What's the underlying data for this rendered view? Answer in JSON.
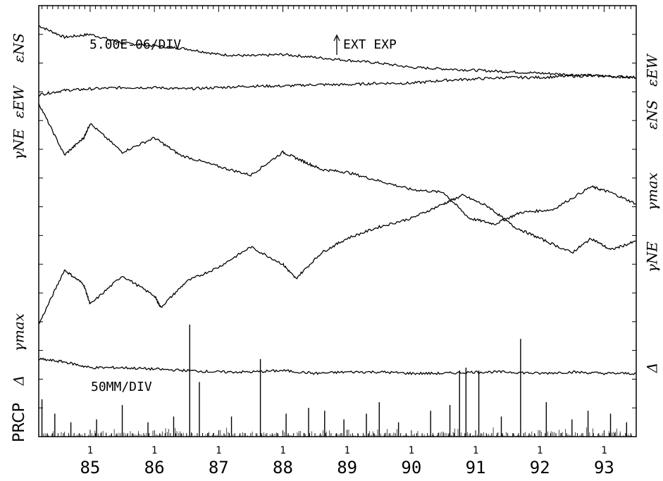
{
  "chart_data": {
    "type": "line",
    "annotations": {
      "strain_scale": "5.00E-06/DIV",
      "event": "EXT EXP",
      "precip_scale": "50MM/DIV"
    },
    "left_labels": [
      "εNS",
      "εEW",
      "γNE",
      "γmax",
      "Δ",
      "PRCP"
    ],
    "right_labels": [
      "εEW",
      "εNS",
      "γmax",
      "γNE",
      "Δ"
    ],
    "x_ticks": [
      {
        "top": "1",
        "bottom": "85",
        "year": 85.0
      },
      {
        "top": "1",
        "bottom": "86",
        "year": 86.0
      },
      {
        "top": "1",
        "bottom": "87",
        "year": 87.0
      },
      {
        "top": "1",
        "bottom": "88",
        "year": 88.0
      },
      {
        "top": "1",
        "bottom": "89",
        "year": 89.0
      },
      {
        "top": "1",
        "bottom": "90",
        "year": 90.0
      },
      {
        "top": "1",
        "bottom": "91",
        "year": 91.0
      },
      {
        "top": "1",
        "bottom": "92",
        "year": 92.0
      },
      {
        "top": "1",
        "bottom": "93",
        "year": 93.0
      }
    ],
    "xlim": [
      84.2,
      93.5
    ],
    "y_unit_note": "strain in 5.00E-06 divisions; precipitation in 50 mm divisions",
    "ylim": [
      0,
      15
    ],
    "series": [
      {
        "name": "εNS",
        "x": [
          84.2,
          84.6,
          85.0,
          85.5,
          86.0,
          86.5,
          87.0,
          87.5,
          88.0,
          88.5,
          89.0,
          89.5,
          90.0,
          90.5,
          91.0,
          91.5,
          92.0,
          92.5,
          93.0,
          93.5
        ],
        "y": [
          14.3,
          13.9,
          14.0,
          13.7,
          13.6,
          13.5,
          13.3,
          13.25,
          13.3,
          13.2,
          13.1,
          13.0,
          12.85,
          12.8,
          12.75,
          12.7,
          12.65,
          12.6,
          12.55,
          12.5
        ]
      },
      {
        "name": "εEW",
        "x": [
          84.2,
          84.6,
          85.0,
          85.5,
          86.0,
          86.5,
          87.0,
          87.5,
          88.0,
          88.5,
          89.0,
          89.5,
          90.0,
          90.5,
          91.0,
          91.5,
          92.0,
          92.5,
          93.0,
          93.5
        ],
        "y": [
          11.9,
          12.05,
          12.1,
          12.15,
          12.15,
          12.1,
          12.15,
          12.2,
          12.2,
          12.25,
          12.25,
          12.3,
          12.3,
          12.4,
          12.45,
          12.5,
          12.5,
          12.55,
          12.55,
          12.5
        ]
      },
      {
        "name": "γmax",
        "x": [
          84.2,
          84.6,
          84.9,
          85.0,
          85.5,
          86.0,
          86.4,
          87.0,
          87.5,
          88.0,
          88.3,
          88.6,
          89.0,
          89.5,
          90.0,
          90.5,
          90.9,
          91.3,
          91.7,
          92.2,
          92.8,
          93.1,
          93.5
        ],
        "y": [
          11.6,
          9.8,
          10.4,
          10.9,
          9.9,
          10.4,
          9.8,
          9.4,
          9.1,
          9.9,
          9.6,
          9.3,
          9.2,
          8.9,
          8.6,
          8.5,
          7.6,
          7.4,
          7.8,
          7.9,
          8.7,
          8.5,
          8.1
        ]
      },
      {
        "name": "γNE",
        "x": [
          84.2,
          84.6,
          84.9,
          85.0,
          85.5,
          86.0,
          86.1,
          86.5,
          87.0,
          87.5,
          88.0,
          88.2,
          88.6,
          89.0,
          89.5,
          90.0,
          90.5,
          90.8,
          91.2,
          91.6,
          92.0,
          92.5,
          92.8,
          93.1,
          93.5
        ],
        "y": [
          3.9,
          5.8,
          5.3,
          4.6,
          5.6,
          4.9,
          4.5,
          5.4,
          5.9,
          6.6,
          6.0,
          5.5,
          6.4,
          6.9,
          7.3,
          7.6,
          8.1,
          8.4,
          8.0,
          7.3,
          6.9,
          6.4,
          6.9,
          6.5,
          6.8
        ]
      },
      {
        "name": "Δ",
        "x": [
          84.2,
          84.6,
          85.0,
          85.5,
          86.0,
          86.5,
          87.0,
          87.5,
          88.0,
          88.5,
          89.0,
          89.5,
          90.0,
          90.5,
          91.0,
          91.5,
          92.0,
          92.5,
          93.0,
          93.5
        ],
        "y": [
          2.7,
          2.6,
          2.4,
          2.4,
          2.35,
          2.3,
          2.25,
          2.25,
          2.3,
          2.2,
          2.25,
          2.25,
          2.2,
          2.2,
          2.25,
          2.25,
          2.2,
          2.25,
          2.2,
          2.2
        ]
      },
      {
        "name": "PRCP",
        "x": [
          84.25,
          84.45,
          84.7,
          85.1,
          85.5,
          85.9,
          86.3,
          86.55,
          86.7,
          87.2,
          87.65,
          88.05,
          88.4,
          88.65,
          88.95,
          89.3,
          89.5,
          89.8,
          90.3,
          90.6,
          90.75,
          90.85,
          91.05,
          91.4,
          91.7,
          92.1,
          92.5,
          92.75,
          93.1,
          93.35
        ],
        "y": [
          1.3,
          0.8,
          0.5,
          0.6,
          1.1,
          0.5,
          0.7,
          3.9,
          1.9,
          0.7,
          2.7,
          0.8,
          1.0,
          0.9,
          0.6,
          0.8,
          1.2,
          0.5,
          0.9,
          1.1,
          2.3,
          2.4,
          2.3,
          0.7,
          3.4,
          1.2,
          0.6,
          0.9,
          0.8,
          0.5
        ]
      }
    ]
  }
}
